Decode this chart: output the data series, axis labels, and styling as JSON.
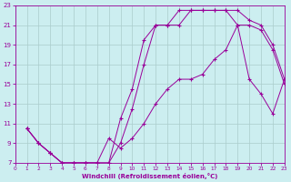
{
  "xlabel": "Windchill (Refroidissement éolien,°C)",
  "bg_color": "#cceef0",
  "grid_color": "#aacccc",
  "line_color": "#990099",
  "xlim": [
    0,
    23
  ],
  "ylim": [
    7,
    23
  ],
  "xticks": [
    0,
    1,
    2,
    3,
    4,
    5,
    6,
    7,
    8,
    9,
    10,
    11,
    12,
    13,
    14,
    15,
    16,
    17,
    18,
    19,
    20,
    21,
    22,
    23
  ],
  "yticks": [
    7,
    9,
    11,
    13,
    15,
    17,
    19,
    21,
    23
  ],
  "line1_x": [
    1,
    2,
    3,
    4,
    5,
    6,
    7,
    8,
    9,
    10,
    11,
    12,
    13,
    14,
    15,
    16,
    17,
    18,
    19,
    20,
    21,
    22,
    23
  ],
  "line1_y": [
    10.5,
    9.0,
    8.0,
    7.0,
    7.0,
    7.0,
    7.0,
    7.0,
    11.5,
    14.5,
    19.5,
    21.0,
    21.0,
    22.5,
    22.5,
    22.5,
    22.5,
    22.5,
    22.5,
    21.5,
    21.0,
    19.0,
    15.5
  ],
  "line2_x": [
    1,
    2,
    3,
    4,
    5,
    6,
    7,
    8,
    9,
    10,
    11,
    12,
    13,
    14,
    15,
    16,
    17,
    18,
    19,
    20,
    21,
    22,
    23
  ],
  "line2_y": [
    10.5,
    9.0,
    8.0,
    7.0,
    7.0,
    7.0,
    7.0,
    7.0,
    9.0,
    12.5,
    17.0,
    21.0,
    21.0,
    21.0,
    22.5,
    22.5,
    22.5,
    22.5,
    21.0,
    21.0,
    20.5,
    18.5,
    15.0
  ],
  "line3_x": [
    1,
    2,
    3,
    4,
    5,
    6,
    7,
    8,
    9,
    10,
    11,
    12,
    13,
    14,
    15,
    16,
    17,
    18,
    19,
    20,
    21,
    22,
    23
  ],
  "line3_y": [
    10.5,
    9.0,
    8.0,
    7.0,
    7.0,
    7.0,
    7.0,
    9.5,
    8.5,
    9.5,
    11.0,
    13.0,
    14.5,
    15.5,
    15.5,
    16.0,
    17.5,
    18.5,
    21.0,
    15.5,
    14.0,
    12.0,
    15.5
  ]
}
